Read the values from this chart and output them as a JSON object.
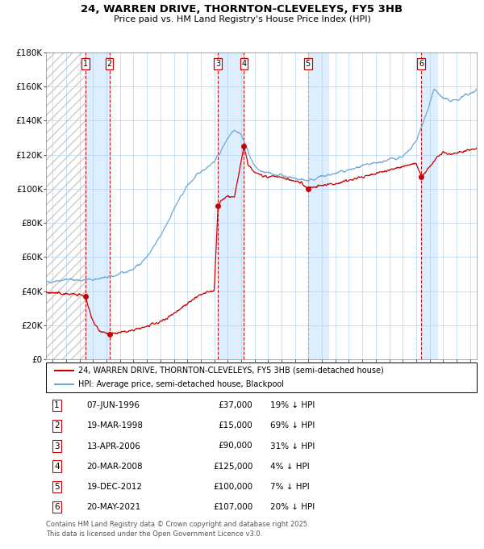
{
  "title": "24, WARREN DRIVE, THORNTON-CLEVELEYS, FY5 3HB",
  "subtitle": "Price paid vs. HM Land Registry's House Price Index (HPI)",
  "legend_line1": "24, WARREN DRIVE, THORNTON-CLEVELEYS, FY5 3HB (semi-detached house)",
  "legend_line2": "HPI: Average price, semi-detached house, Blackpool",
  "footer1": "Contains HM Land Registry data © Crown copyright and database right 2025.",
  "footer2": "This data is licensed under the Open Government Licence v3.0.",
  "sales": [
    {
      "num": 1,
      "date_label": "07-JUN-1996",
      "price": 37000,
      "pct": "19% ↓ HPI",
      "x": 1996.44
    },
    {
      "num": 2,
      "date_label": "19-MAR-1998",
      "price": 15000,
      "pct": "69% ↓ HPI",
      "x": 1998.21
    },
    {
      "num": 3,
      "date_label": "13-APR-2006",
      "price": 90000,
      "pct": "31% ↓ HPI",
      "x": 2006.28
    },
    {
      "num": 4,
      "date_label": "20-MAR-2008",
      "price": 125000,
      "pct": "4% ↓ HPI",
      "x": 2008.21
    },
    {
      "num": 5,
      "date_label": "19-DEC-2012",
      "price": 100000,
      "pct": "7% ↓ HPI",
      "x": 2012.96
    },
    {
      "num": 6,
      "date_label": "20-MAY-2021",
      "price": 107000,
      "pct": "20% ↓ HPI",
      "x": 2021.38
    }
  ],
  "hpi_color": "#6ea8d8",
  "price_color": "#cc0000",
  "highlight_color": "#ddeeff",
  "ylim": [
    0,
    180000
  ],
  "xlim": [
    1993.5,
    2025.5
  ],
  "yticks": [
    0,
    20000,
    40000,
    60000,
    80000,
    100000,
    120000,
    140000,
    160000,
    180000
  ],
  "ytick_labels": [
    "£0",
    "£20K",
    "£40K",
    "£60K",
    "£80K",
    "£100K",
    "£120K",
    "£140K",
    "£160K",
    "£180K"
  ],
  "xticks": [
    1994,
    1995,
    1996,
    1997,
    1998,
    1999,
    2000,
    2001,
    2002,
    2003,
    2004,
    2005,
    2006,
    2007,
    2008,
    2009,
    2010,
    2011,
    2012,
    2013,
    2014,
    2015,
    2016,
    2017,
    2018,
    2019,
    2020,
    2021,
    2022,
    2023,
    2024,
    2025
  ]
}
